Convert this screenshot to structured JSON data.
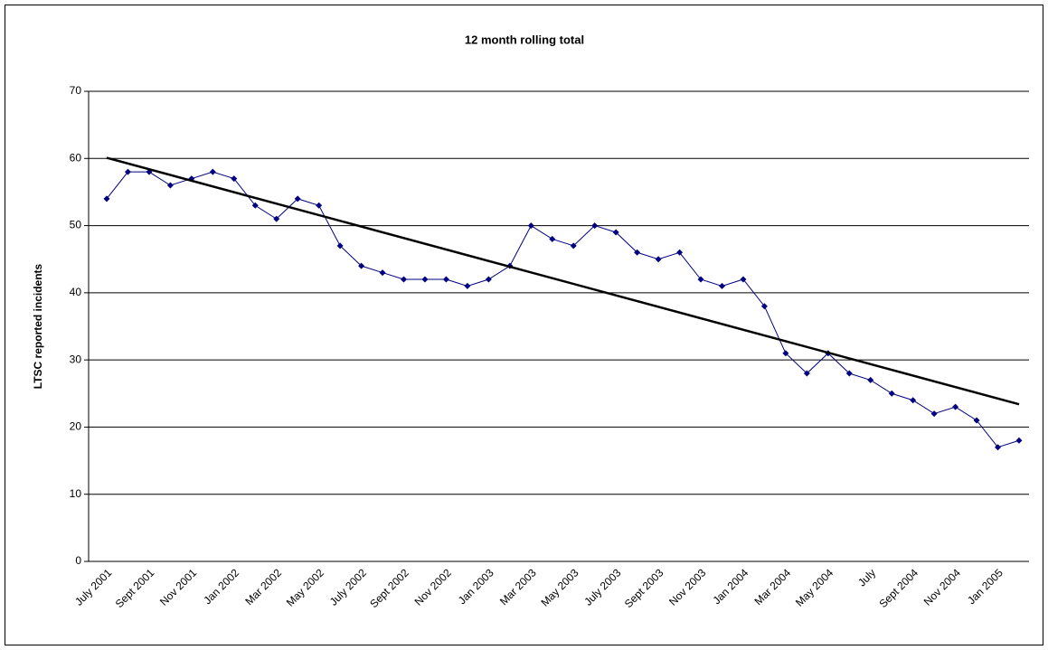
{
  "chart_data": {
    "type": "line",
    "title": "12 month rolling total",
    "y_label": "LTSC reported incidents",
    "categories": [
      "July 2001",
      null,
      "Sept 2001",
      null,
      "Nov 2001",
      null,
      "Jan 2002",
      null,
      "Mar 2002",
      null,
      "May 2002",
      null,
      "July 2002",
      null,
      "Sept 2002",
      null,
      "Nov 2002",
      null,
      "Jan 2003",
      null,
      "Mar 2003",
      null,
      "May 2003",
      null,
      "July 2003",
      null,
      "Sept 2003",
      null,
      "Nov 2003",
      null,
      "Jan 2004",
      null,
      "Mar 2004",
      null,
      "May 2004",
      null,
      "July",
      null,
      "Sept 2004",
      null,
      "Nov 2004",
      null,
      "Jan 2005",
      null
    ],
    "series": [
      {
        "color": "#000080",
        "values": [
          54,
          58,
          58,
          56,
          57,
          58,
          57,
          53,
          51,
          54,
          53,
          47,
          44,
          43,
          42,
          42,
          42,
          41,
          42,
          44,
          50,
          48,
          47,
          50,
          49,
          46,
          45,
          46,
          42,
          41,
          42,
          38,
          31,
          28,
          31,
          28,
          27,
          25,
          24,
          22,
          23,
          21,
          17,
          18
        ]
      }
    ],
    "trendline": {
      "start": 60.1,
      "end": 23.4,
      "color": "#000000"
    },
    "ylim": [
      0,
      70
    ],
    "yticks": [
      0,
      10,
      20,
      30,
      40,
      50,
      60,
      70
    ],
    "grid": true
  }
}
